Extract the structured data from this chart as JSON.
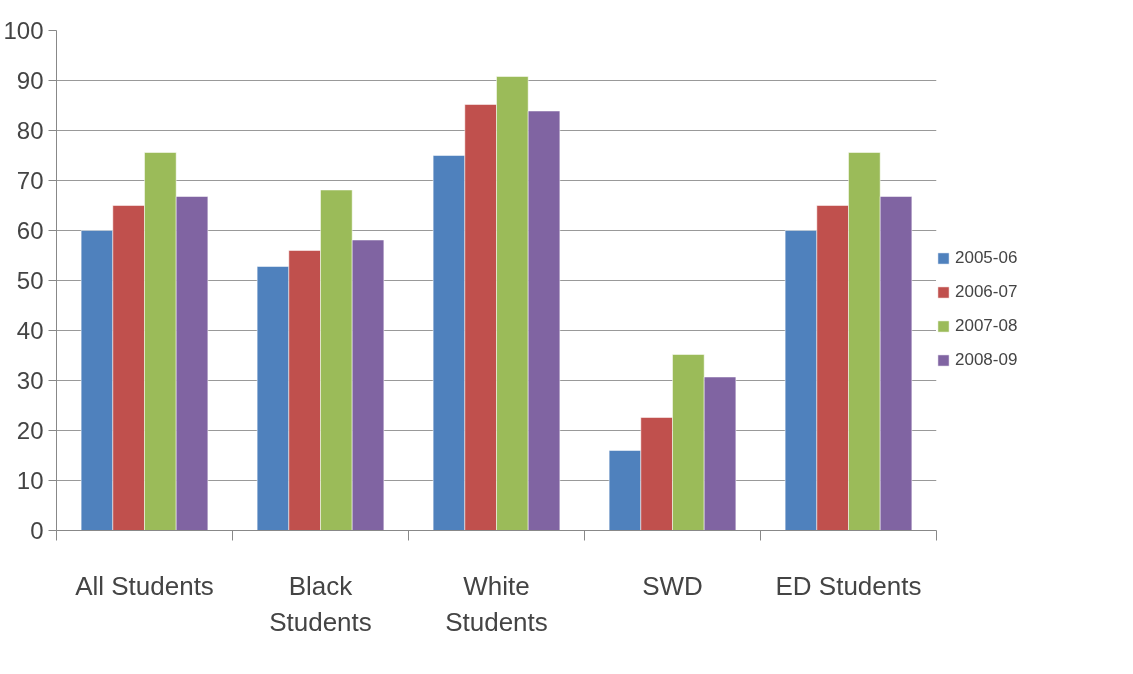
{
  "chart_data": {
    "type": "bar",
    "categories": [
      "All Students",
      "Black Students",
      "White Students",
      "SWD",
      "ED Students"
    ],
    "series": [
      {
        "name": "2005-06",
        "color": "#4f81bd",
        "values": [
          60,
          52.8,
          75,
          16,
          60
        ]
      },
      {
        "name": "2006-07",
        "color": "#c0504d",
        "values": [
          65,
          56,
          85.2,
          22.6,
          65
        ]
      },
      {
        "name": "2007-08",
        "color": "#9bbb59",
        "values": [
          75.6,
          68.1,
          90.8,
          35.2,
          75.6
        ]
      },
      {
        "name": "2008-09",
        "color": "#8064a2",
        "values": [
          66.8,
          58.1,
          83.9,
          30.7,
          66.8
        ]
      }
    ],
    "ylim": [
      0,
      100
    ],
    "yticks": [
      0,
      10,
      20,
      30,
      40,
      50,
      60,
      70,
      80,
      90,
      100
    ],
    "grid": "y",
    "legend": "right"
  }
}
